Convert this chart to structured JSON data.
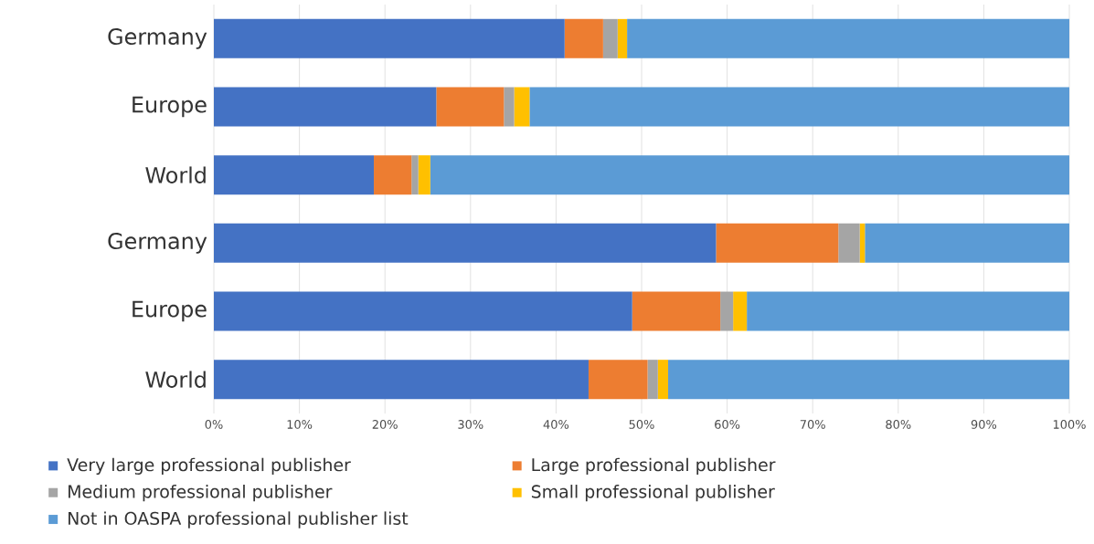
{
  "chart_data": {
    "type": "bar",
    "orientation": "horizontal",
    "stacked": true,
    "categories": [
      "Germany",
      "Europe",
      "World",
      "Germany",
      "Europe",
      "World"
    ],
    "series": [
      {
        "name": "Very large professional publisher",
        "color": "#4472c4",
        "values": [
          41.0,
          26.0,
          18.7,
          58.7,
          48.9,
          43.8
        ]
      },
      {
        "name": "Large professional publisher",
        "color": "#ed7d31",
        "values": [
          4.5,
          7.9,
          4.4,
          14.3,
          10.3,
          6.9
        ]
      },
      {
        "name": "Medium professional publisher",
        "color": "#a5a5a5",
        "values": [
          1.7,
          1.2,
          0.8,
          2.5,
          1.5,
          1.2
        ]
      },
      {
        "name": "Small professional publisher",
        "color": "#ffc000",
        "values": [
          1.1,
          1.8,
          1.4,
          0.6,
          1.6,
          1.2
        ]
      },
      {
        "name": "Not in OASPA professional publisher list",
        "color": "#5b9bd5",
        "values": [
          51.7,
          63.1,
          74.7,
          23.9,
          37.7,
          46.9
        ]
      }
    ],
    "xlim": [
      0,
      100
    ],
    "xticks": [
      {
        "value": 0,
        "label": "0%"
      },
      {
        "value": 10,
        "label": "10%"
      },
      {
        "value": 20,
        "label": "20%"
      },
      {
        "value": 30,
        "label": "30%"
      },
      {
        "value": 40,
        "label": "40%"
      },
      {
        "value": 50,
        "label": "50%"
      },
      {
        "value": 60,
        "label": "60%"
      },
      {
        "value": 70,
        "label": "70%"
      },
      {
        "value": 80,
        "label": "80%"
      },
      {
        "value": 90,
        "label": "90%"
      },
      {
        "value": 100,
        "label": "100%"
      }
    ],
    "grid": "x",
    "legend": "bottom left"
  }
}
